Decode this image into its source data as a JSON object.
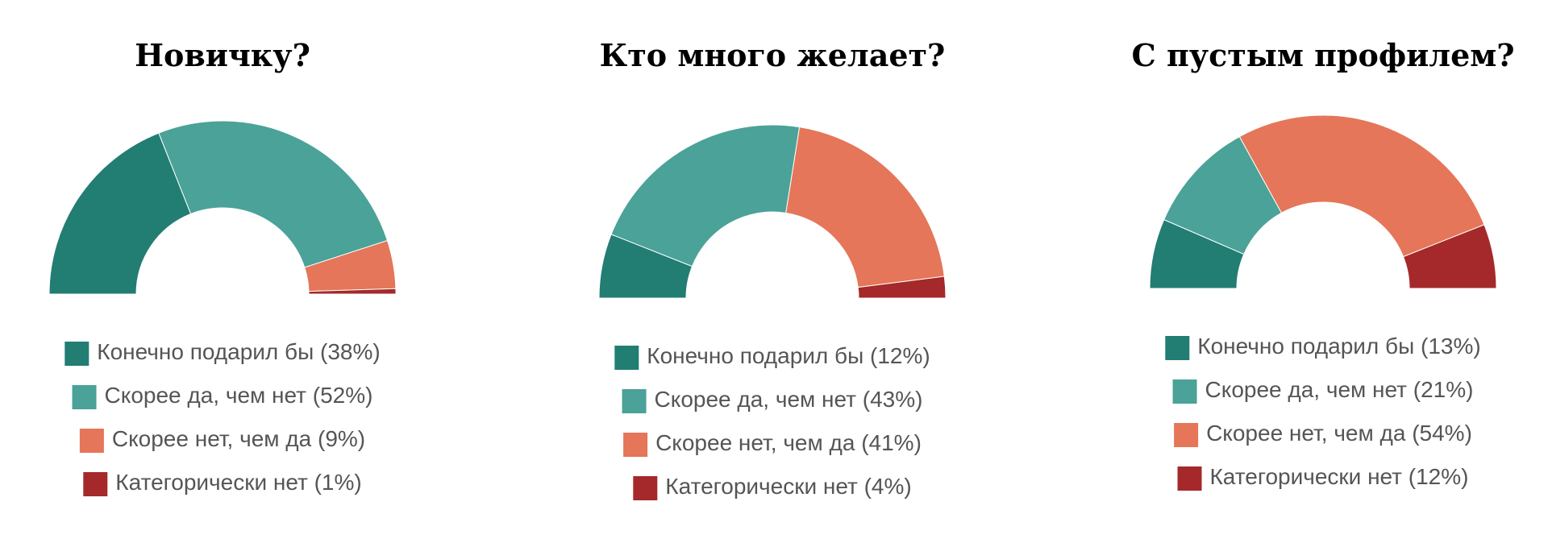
{
  "chart_data": [
    {
      "type": "semidonut",
      "title": "Новичку?",
      "categories": [
        "Конечно подарил бы",
        "Скорее да, чем нет",
        "Скорее нет, чем да",
        "Категорически нет"
      ],
      "values": [
        38,
        52,
        9,
        1
      ],
      "value_labels": [
        "(38%)",
        "(52%)",
        "(9%)",
        "(1%)"
      ],
      "colors": [
        "#227d73",
        "#4aa298",
        "#e57659",
        "#a5292a"
      ]
    },
    {
      "type": "semidonut",
      "title": "Кто много желает?",
      "categories": [
        "Конечно подарил бы",
        "Скорее да, чем нет",
        "Скорее нет, чем да",
        "Категорически нет"
      ],
      "values": [
        12,
        43,
        41,
        4
      ],
      "value_labels": [
        "(12%)",
        "(43%)",
        "(41%)",
        "(4%)"
      ],
      "colors": [
        "#227d73",
        "#4aa298",
        "#e57659",
        "#a5292a"
      ]
    },
    {
      "type": "semidonut",
      "title": "С пустым профилем?",
      "categories": [
        "Конечно подарил бы",
        "Скорее да, чем нет",
        "Скорее нет, чем да",
        "Категорически нет"
      ],
      "values": [
        13,
        21,
        54,
        12
      ],
      "value_labels": [
        "(13%)",
        "(21%)",
        "(54%)",
        "(12%)"
      ],
      "colors": [
        "#227d73",
        "#4aa298",
        "#e57659",
        "#a5292a"
      ]
    }
  ]
}
